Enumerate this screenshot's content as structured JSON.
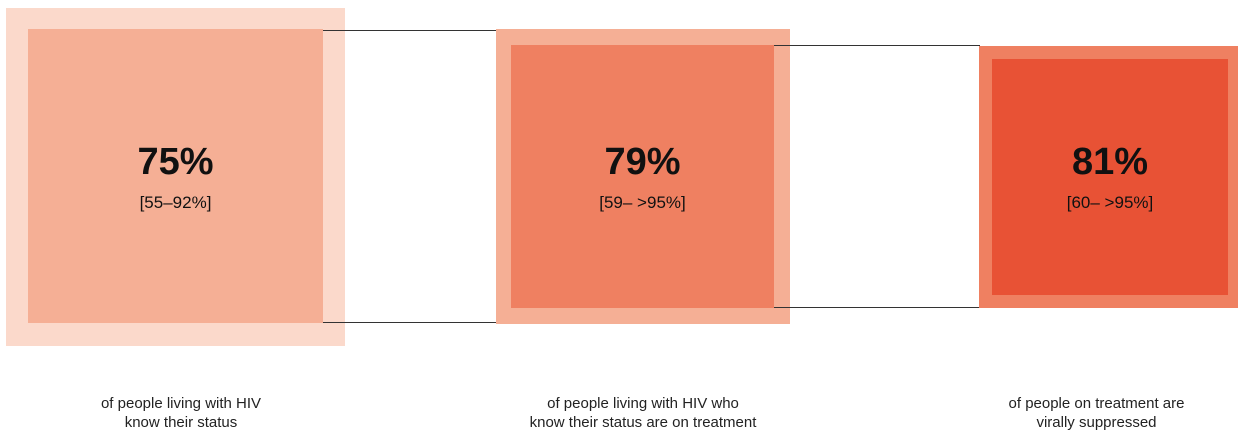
{
  "stages": [
    {
      "percent": "75%",
      "range": "[55–92%]",
      "caption_line1": "of people living with HIV",
      "caption_line2": "know their status",
      "outer_color": "#FBD9CB",
      "inner_color": "#F5AF95"
    },
    {
      "percent": "79%",
      "range": "[59– >95%]",
      "caption_line1": "of people living with HIV who",
      "caption_line2": "know their status are on treatment",
      "outer_color": "#F5AF95",
      "inner_color": "#EF8061"
    },
    {
      "percent": "81%",
      "range": "[60– >95%]",
      "caption_line1": "of people on treatment are",
      "caption_line2": "virally suppressed",
      "outer_color": "#EF8061",
      "inner_color": "#E85235"
    }
  ],
  "connector_color": "#333333"
}
